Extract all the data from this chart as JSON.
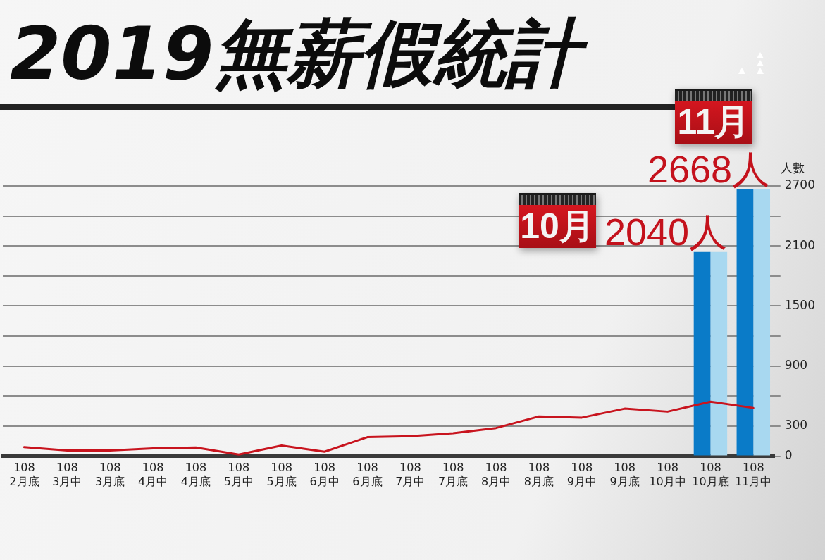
{
  "chart_data": {
    "type": "bar",
    "title": "2019無薪假統計",
    "ylabel": "人數",
    "categories": [
      "108\n2月底",
      "108\n3月中",
      "108\n3月底",
      "108\n4月中",
      "108\n4月底",
      "108\n5月中",
      "108\n5月底",
      "108\n6月中",
      "108\n6月底",
      "108\n7月中",
      "108\n7月底",
      "108\n8月中",
      "108\n8月底",
      "108\n9月中",
      "108\n9月底",
      "108\n10月中",
      "108\n10月底",
      "108\n11月中"
    ],
    "series": [
      {
        "color": "#0a7bc8",
        "values": [
          null,
          null,
          null,
          null,
          null,
          null,
          null,
          null,
          null,
          null,
          null,
          null,
          null,
          null,
          null,
          null,
          2040,
          2668
        ],
        "value_labels": [
          null,
          null,
          null,
          null,
          null,
          null,
          null,
          null,
          null,
          null,
          null,
          null,
          null,
          null,
          null,
          null,
          "2040人",
          "2668人"
        ]
      },
      {
        "color": "#a8d8f0",
        "values": [
          null,
          null,
          null,
          null,
          null,
          null,
          null,
          null,
          null,
          null,
          null,
          null,
          null,
          null,
          null,
          null,
          2040,
          2668
        ]
      },
      {
        "type": "line",
        "color": "#c8141e",
        "marker": "none",
        "values": [
          90,
          57,
          57,
          78,
          87,
          16,
          106,
          45,
          190,
          199,
          229,
          281,
          397,
          385,
          475,
          445,
          545,
          482
        ]
      }
    ],
    "ylim": [
      0,
      2700
    ],
    "yticks": [
      0,
      300,
      {
        "value": 600,
        "label": null
      },
      900,
      {
        "value": 1200,
        "label": null
      },
      1500,
      {
        "value": 1800,
        "label": null
      },
      2100,
      {
        "value": 2400,
        "label": null
      },
      2700
    ],
    "grid": "y",
    "annotations": [
      "10月",
      "11月"
    ]
  }
}
